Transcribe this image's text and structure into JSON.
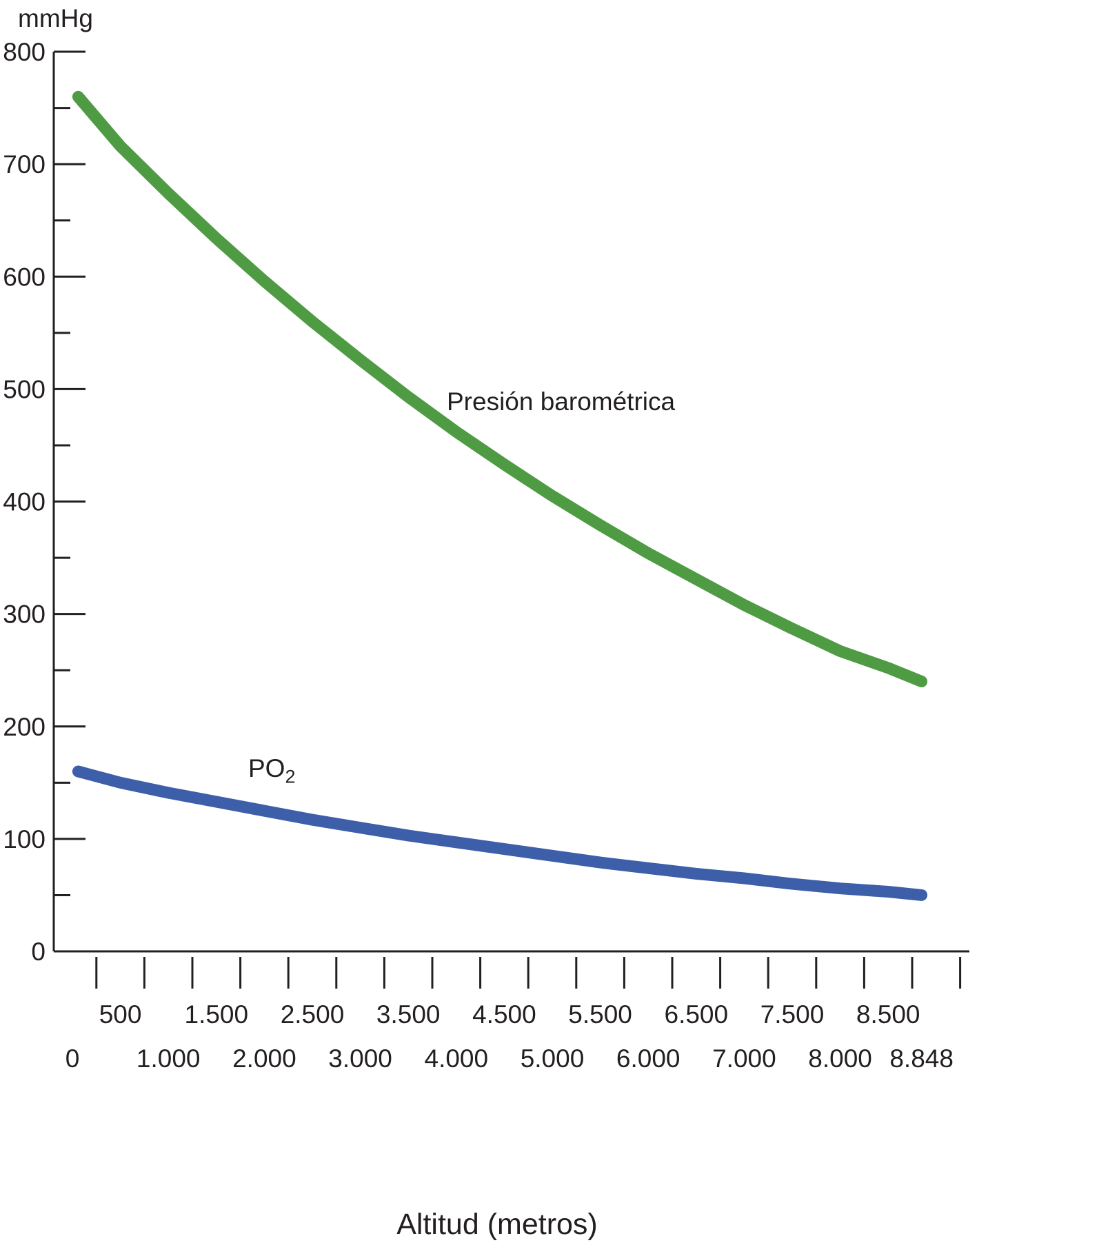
{
  "chart_data": {
    "type": "line",
    "title": "",
    "xlabel": "Altitud (metros)",
    "ylabel": "mmHg",
    "xlim": [
      0,
      9400
    ],
    "ylim": [
      0,
      800
    ],
    "grid": false,
    "legend_position": "inline-labels",
    "axis_color": "#231f20",
    "text_color": "#231f20",
    "y_major_ticks": [
      0,
      100,
      200,
      300,
      400,
      500,
      600,
      700,
      800
    ],
    "y_minor_ticks": [
      50,
      150,
      250,
      350,
      450,
      550,
      650,
      750
    ],
    "x_tick_values": [
      250,
      750,
      1250,
      1750,
      2250,
      2750,
      3250,
      3750,
      4250,
      4750,
      5250,
      5750,
      6250,
      6750,
      7250,
      7750,
      8250,
      8750,
      9250
    ],
    "x_labels_upper": [
      {
        "v": 500,
        "t": "500"
      },
      {
        "v": 1500,
        "t": "1.500"
      },
      {
        "v": 2500,
        "t": "2.500"
      },
      {
        "v": 3500,
        "t": "3.500"
      },
      {
        "v": 4500,
        "t": "4.500"
      },
      {
        "v": 5500,
        "t": "5.500"
      },
      {
        "v": 6500,
        "t": "6.500"
      },
      {
        "v": 7500,
        "t": "7.500"
      },
      {
        "v": 8500,
        "t": "8.500"
      }
    ],
    "x_labels_lower": [
      {
        "v": 0,
        "t": "0"
      },
      {
        "v": 1000,
        "t": "1.000"
      },
      {
        "v": 2000,
        "t": "2.000"
      },
      {
        "v": 3000,
        "t": "3.000"
      },
      {
        "v": 4000,
        "t": "4.000"
      },
      {
        "v": 5000,
        "t": "5.000"
      },
      {
        "v": 6000,
        "t": "6.000"
      },
      {
        "v": 7000,
        "t": "7.000"
      },
      {
        "v": 8000,
        "t": "8.000"
      },
      {
        "v": 8848,
        "t": "8.848"
      }
    ],
    "series": [
      {
        "name": "Presión barométrica",
        "data_name": "barometric-pressure-curve",
        "color": "#4e9b43",
        "line_width": 17,
        "x": [
          60,
          500,
          1000,
          1500,
          2000,
          2500,
          3000,
          3500,
          4000,
          4500,
          5000,
          5500,
          6000,
          6500,
          7000,
          7500,
          8000,
          8500,
          8848
        ],
        "y": [
          760,
          716,
          674,
          634,
          596,
          560,
          526,
          493,
          462,
          433,
          405,
          379,
          354,
          331,
          308,
          287,
          267,
          252,
          240
        ]
      },
      {
        "name": "PO2",
        "label_main": "PO",
        "label_sub": "2",
        "data_name": "po2-curve",
        "color": "#3d5ea9",
        "line_width": 17,
        "x": [
          60,
          500,
          1000,
          1500,
          2000,
          2500,
          3000,
          3500,
          4000,
          4500,
          5000,
          5500,
          6000,
          6500,
          7000,
          7500,
          8000,
          8500,
          8848
        ],
        "y": [
          160,
          150,
          141,
          133,
          125,
          117,
          110,
          103,
          97,
          91,
          85,
          79,
          74,
          69,
          65,
          60,
          56,
          53,
          50
        ]
      }
    ]
  }
}
